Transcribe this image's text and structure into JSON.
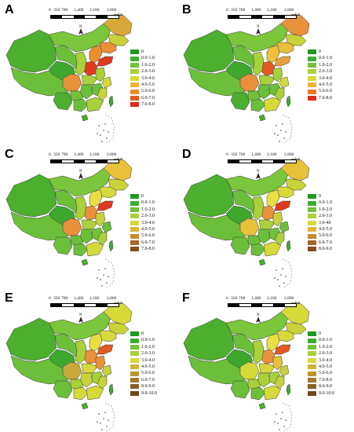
{
  "scale_labels": [
    "0",
    "350",
    "700",
    "1,400",
    "2,100",
    "2,800"
  ],
  "scale_unit": "km",
  "north": "N",
  "panels": [
    {
      "label": "A",
      "legend": [
        "0",
        "0.0-1.0",
        "1.0-2.0",
        "2.0-3.0",
        "3.0-4.0",
        "4.0-5.0",
        "5.0-6.0",
        "6.0-7.0",
        "7.0-8.0"
      ],
      "legend_colors": [
        "#1f9a1f",
        "#3cae2e",
        "#72c23a",
        "#a8d13a",
        "#d6d93a",
        "#f0b13a",
        "#ef8a2c",
        "#e85a22",
        "#e02a18"
      ]
    },
    {
      "label": "B",
      "legend": [
        "0",
        "0.0-1.0",
        "1.0-2.0",
        "2.0-3.0",
        "3.0-4.0",
        "4.0-5.0",
        "5.0-6.0",
        "7.0-8.0"
      ],
      "legend_colors": [
        "#1f9a1f",
        "#3cae2e",
        "#72c23a",
        "#a8d13a",
        "#d6d93a",
        "#f0b13a",
        "#ef7a2a",
        "#e02a18"
      ]
    },
    {
      "label": "C",
      "legend": [
        "0",
        "0.0-1.0",
        "1.0-2.0",
        "2.0-3.0",
        "3.0-4.0",
        "4.0-5.0",
        "5.0-6.0",
        "6.0-7.0",
        "7.0-8.0"
      ],
      "legend_colors": [
        "#1f9a1f",
        "#3cae2e",
        "#72c23a",
        "#a8d13a",
        "#d6d93a",
        "#e2b23a",
        "#c98a2e",
        "#a8662a",
        "#8a4a22"
      ]
    },
    {
      "label": "D",
      "legend": [
        "0",
        "0.0-1.0",
        "1.0-2.0",
        "2.0-3.0",
        "3.0-40",
        "4.0-5.0",
        "5.0-6.0",
        "6.0-7.0",
        "8.0-9.0"
      ],
      "legend_colors": [
        "#1f9a1f",
        "#3cae2e",
        "#72c23a",
        "#a8d13a",
        "#d6d93a",
        "#e2b23a",
        "#c98a2e",
        "#a8662a",
        "#8a4a22"
      ]
    },
    {
      "label": "E",
      "legend": [
        "0",
        "0.0-1.0",
        "1.0-2.0",
        "2.0-3.0",
        "3.0-4.0",
        "4.0-5.0",
        "5.0-6.0",
        "6.0-7.0",
        "8.0-9.0",
        "9.0-10.0"
      ],
      "legend_colors": [
        "#1f9a1f",
        "#3cae2e",
        "#72c23a",
        "#a8d13a",
        "#d6d93a",
        "#cdb43a",
        "#b8962e",
        "#a07a2a",
        "#886026",
        "#6e4820"
      ]
    },
    {
      "label": "F",
      "legend": [
        "0",
        "0.0-1.0",
        "1.0-2.0",
        "2.0-3.0",
        "3.0-4.0",
        "4.0-5.0",
        "5.0-6.0",
        "7.0-8.0",
        "8.0-9.0",
        "9.0-10.0"
      ],
      "legend_colors": [
        "#1f9a1f",
        "#3cae2e",
        "#72c23a",
        "#a8d13a",
        "#d6d93a",
        "#cdb43a",
        "#b8962e",
        "#a07a2a",
        "#886026",
        "#6e4820"
      ]
    }
  ],
  "province_fills": {
    "A": {
      "xinjiang": "#4caf2e",
      "tibet": "#6cbf3a",
      "qinghai": "#3ea82e",
      "gansu": "#6cbf3a",
      "inner": "#7ac63c",
      "hlj": "#d9a83a",
      "jilin": "#c8d23a",
      "liaoning": "#e8903a",
      "hebei": "#e8902e",
      "shandong": "#e03a1c",
      "henan": "#e03a1c",
      "sichuan": "#e8903a",
      "shaanxi": "#a8d13a",
      "yunnan": "#4caf2e",
      "guangxi": "#6cbf3a",
      "guangdong": "#a8d13a",
      "hunan": "#6cbf3a",
      "jiangxi": "#6cbf3a",
      "fujian": "#c8d23a",
      "zhejiang": "#d6d93a",
      "anhui": "#a8d13a",
      "hubei": "#a8d13a",
      "guizhou": "#72c23a",
      "taiwan": "#3ea82e",
      "hainan": "#4caf2e"
    },
    "B": {
      "xinjiang": "#4caf2e",
      "tibet": "#6cbf3a",
      "qinghai": "#3ea82e",
      "gansu": "#6cbf3a",
      "inner": "#7ac63c",
      "hlj": "#e8903a",
      "jilin": "#c8d23a",
      "liaoning": "#e8c03a",
      "hebei": "#f0c03a",
      "shandong": "#e8a03a",
      "henan": "#e05a22",
      "sichuan": "#e8903a",
      "shaanxi": "#a8d13a",
      "yunnan": "#4caf2e",
      "guangxi": "#6cbf3a",
      "guangdong": "#d6d93a",
      "hunan": "#6cbf3a",
      "jiangxi": "#6cbf3a",
      "fujian": "#a8d13a",
      "zhejiang": "#d6d93a",
      "anhui": "#a8d13a",
      "hubei": "#a8d13a",
      "guizhou": "#72c23a",
      "taiwan": "#3ea82e",
      "hainan": "#4caf2e"
    },
    "C": {
      "xinjiang": "#4caf2e",
      "tibet": "#6cbf3a",
      "qinghai": "#3ea82e",
      "gansu": "#6cbf3a",
      "inner": "#7ac63c",
      "hlj": "#e8c03a",
      "jilin": "#c8d23a",
      "liaoning": "#d6d93a",
      "hebei": "#e8e040",
      "shandong": "#e03a1c",
      "henan": "#e8903a",
      "sichuan": "#e8903a",
      "shaanxi": "#a8d13a",
      "yunnan": "#6cbf3a",
      "guangxi": "#6cbf3a",
      "guangdong": "#d6d93a",
      "hunan": "#6cbf3a",
      "jiangxi": "#72c23a",
      "fujian": "#a8d13a",
      "zhejiang": "#6cbf3a",
      "anhui": "#c8d23a",
      "hubei": "#a8d13a",
      "guizhou": "#6cbf3a",
      "taiwan": "#3ea82e",
      "hainan": "#4caf2e"
    },
    "D": {
      "xinjiang": "#4caf2e",
      "tibet": "#6cbf3a",
      "qinghai": "#3ea82e",
      "gansu": "#6cbf3a",
      "inner": "#7ac63c",
      "hlj": "#e8c03a",
      "jilin": "#c8d23a",
      "liaoning": "#d6d93a",
      "hebei": "#e8e040",
      "shandong": "#e03a1c",
      "henan": "#e8903a",
      "sichuan": "#e8c03a",
      "shaanxi": "#a8d13a",
      "yunnan": "#6cbf3a",
      "guangxi": "#6cbf3a",
      "guangdong": "#d6d93a",
      "hunan": "#6cbf3a",
      "jiangxi": "#72c23a",
      "fujian": "#a8d13a",
      "zhejiang": "#6cbf3a",
      "anhui": "#c8d23a",
      "hubei": "#a8d13a",
      "guizhou": "#6cbf3a",
      "taiwan": "#3ea82e",
      "hainan": "#4caf2e"
    },
    "E": {
      "xinjiang": "#4caf2e",
      "tibet": "#6cbf3a",
      "qinghai": "#3ea82e",
      "gansu": "#6cbf3a",
      "inner": "#7ac63c",
      "hlj": "#d6d93a",
      "jilin": "#c8d23a",
      "liaoning": "#d6d93a",
      "hebei": "#e8e040",
      "shandong": "#e05a22",
      "henan": "#e8903a",
      "sichuan": "#c8a83a",
      "shaanxi": "#a8d13a",
      "yunnan": "#6cbf3a",
      "guangxi": "#d6d93a",
      "guangdong": "#d6d93a",
      "hunan": "#c8d23a",
      "jiangxi": "#a8d13a",
      "fujian": "#c8d23a",
      "zhejiang": "#c8d23a",
      "anhui": "#e8903a",
      "hubei": "#d6d93a",
      "guizhou": "#a8d13a",
      "taiwan": "#3ea82e",
      "hainan": "#4caf2e"
    },
    "F": {
      "xinjiang": "#4caf2e",
      "tibet": "#6cbf3a",
      "qinghai": "#3ea82e",
      "gansu": "#6cbf3a",
      "inner": "#7ac63c",
      "hlj": "#d6d93a",
      "jilin": "#c8d23a",
      "liaoning": "#d6d93a",
      "hebei": "#e8e040",
      "shandong": "#e05a22",
      "henan": "#e8903a",
      "sichuan": "#d6d93a",
      "shaanxi": "#a8d13a",
      "yunnan": "#6cbf3a",
      "guangxi": "#6cbf3a",
      "guangdong": "#d6d93a",
      "hunan": "#a8d13a",
      "jiangxi": "#a8d13a",
      "fujian": "#c8d23a",
      "zhejiang": "#c8d23a",
      "anhui": "#e8c03a",
      "hubei": "#d6d93a",
      "guizhou": "#a8d13a",
      "taiwan": "#3ea82e",
      "hainan": "#4caf2e"
    }
  }
}
